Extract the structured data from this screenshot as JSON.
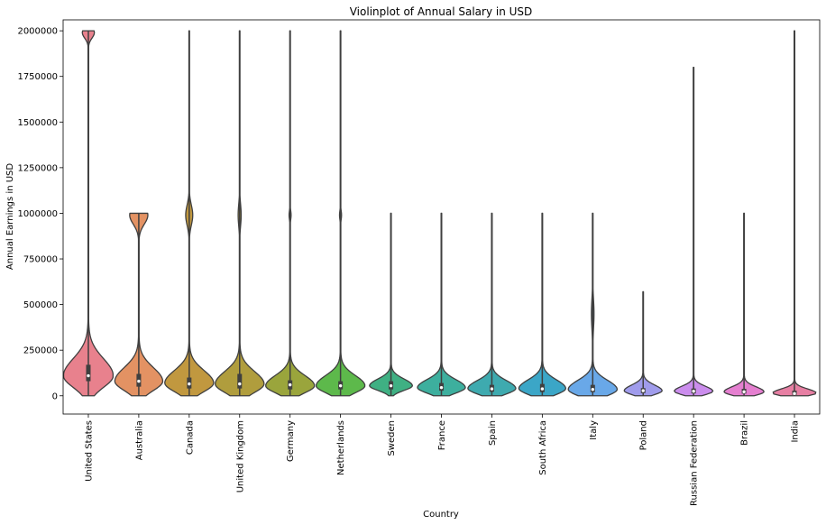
{
  "chart_data": {
    "type": "violin",
    "title": "Violinplot of Annual Salary in USD",
    "xlabel": "Country",
    "ylabel": "Annual Earnings in USD",
    "ylim": [
      -100000,
      2060000
    ],
    "yticks": [
      0,
      250000,
      500000,
      750000,
      1000000,
      1250000,
      1500000,
      1750000,
      2000000
    ],
    "ytick_labels": [
      "0",
      "250000",
      "500000",
      "750000",
      "1000000",
      "1250000",
      "1500000",
      "1750000",
      "2000000"
    ],
    "categories": [
      "United States",
      "Australia",
      "Canada",
      "United Kingdom",
      "Germany",
      "Netherlands",
      "Sweden",
      "France",
      "Spain",
      "South Africa",
      "Italy",
      "Poland",
      "Russian Federation",
      "Brazil",
      "India"
    ],
    "colors": [
      "#e8818d",
      "#e39263",
      "#c1983f",
      "#b09d3d",
      "#9aa53c",
      "#5db94b",
      "#3fb083",
      "#3daf9e",
      "#3eaaaf",
      "#3ba6c7",
      "#69a8e8",
      "#a09cec",
      "#cb8ded",
      "#e57fd0",
      "#e77fa3"
    ],
    "medians": [
      110000,
      80000,
      65000,
      65000,
      60000,
      55000,
      55000,
      45000,
      38000,
      38000,
      35000,
      28000,
      25000,
      22000,
      12000
    ],
    "q1": [
      80000,
      50000,
      40000,
      40000,
      35000,
      35000,
      35000,
      28000,
      22000,
      20000,
      20000,
      15000,
      13000,
      12000,
      5000
    ],
    "q3": [
      170000,
      120000,
      100000,
      120000,
      85000,
      80000,
      80000,
      70000,
      60000,
      65000,
      60000,
      42000,
      40000,
      38000,
      28000
    ],
    "max": [
      2000000,
      1000000,
      2000000,
      2000000,
      2000000,
      2000000,
      1000000,
      1000000,
      1000000,
      1000000,
      1000000,
      570000,
      1800000,
      1000000,
      2000000
    ],
    "mode": [
      110000,
      80000,
      70000,
      65000,
      55000,
      55000,
      55000,
      45000,
      40000,
      40000,
      35000,
      28000,
      25000,
      22000,
      15000
    ],
    "maxwidth": [
      0.96,
      0.92,
      0.94,
      0.94,
      0.94,
      0.94,
      0.82,
      0.92,
      0.92,
      0.9,
      0.94,
      0.72,
      0.74,
      0.76,
      0.84
    ],
    "spread": [
      75000,
      60000,
      55000,
      55000,
      45000,
      45000,
      30000,
      35000,
      35000,
      38000,
      40000,
      25000,
      22000,
      22000,
      18000
    ],
    "bumps": [
      [
        {
          "at": 1990000,
          "w": 0.24,
          "s": 30000
        }
      ],
      [
        {
          "at": 990000,
          "w": 0.36,
          "s": 50000
        }
      ],
      [
        {
          "at": 990000,
          "w": 0.14,
          "s": 55000
        }
      ],
      [
        {
          "at": 990000,
          "w": 0.06,
          "s": 60000
        }
      ],
      [
        {
          "at": 990000,
          "w": 0.04,
          "s": 25000
        }
      ],
      [
        {
          "at": 990000,
          "w": 0.04,
          "s": 25000
        }
      ],
      [],
      [],
      [],
      [],
      [
        {
          "at": 450000,
          "w": 0.05,
          "s": 80000
        }
      ],
      [],
      [],
      [],
      []
    ]
  }
}
